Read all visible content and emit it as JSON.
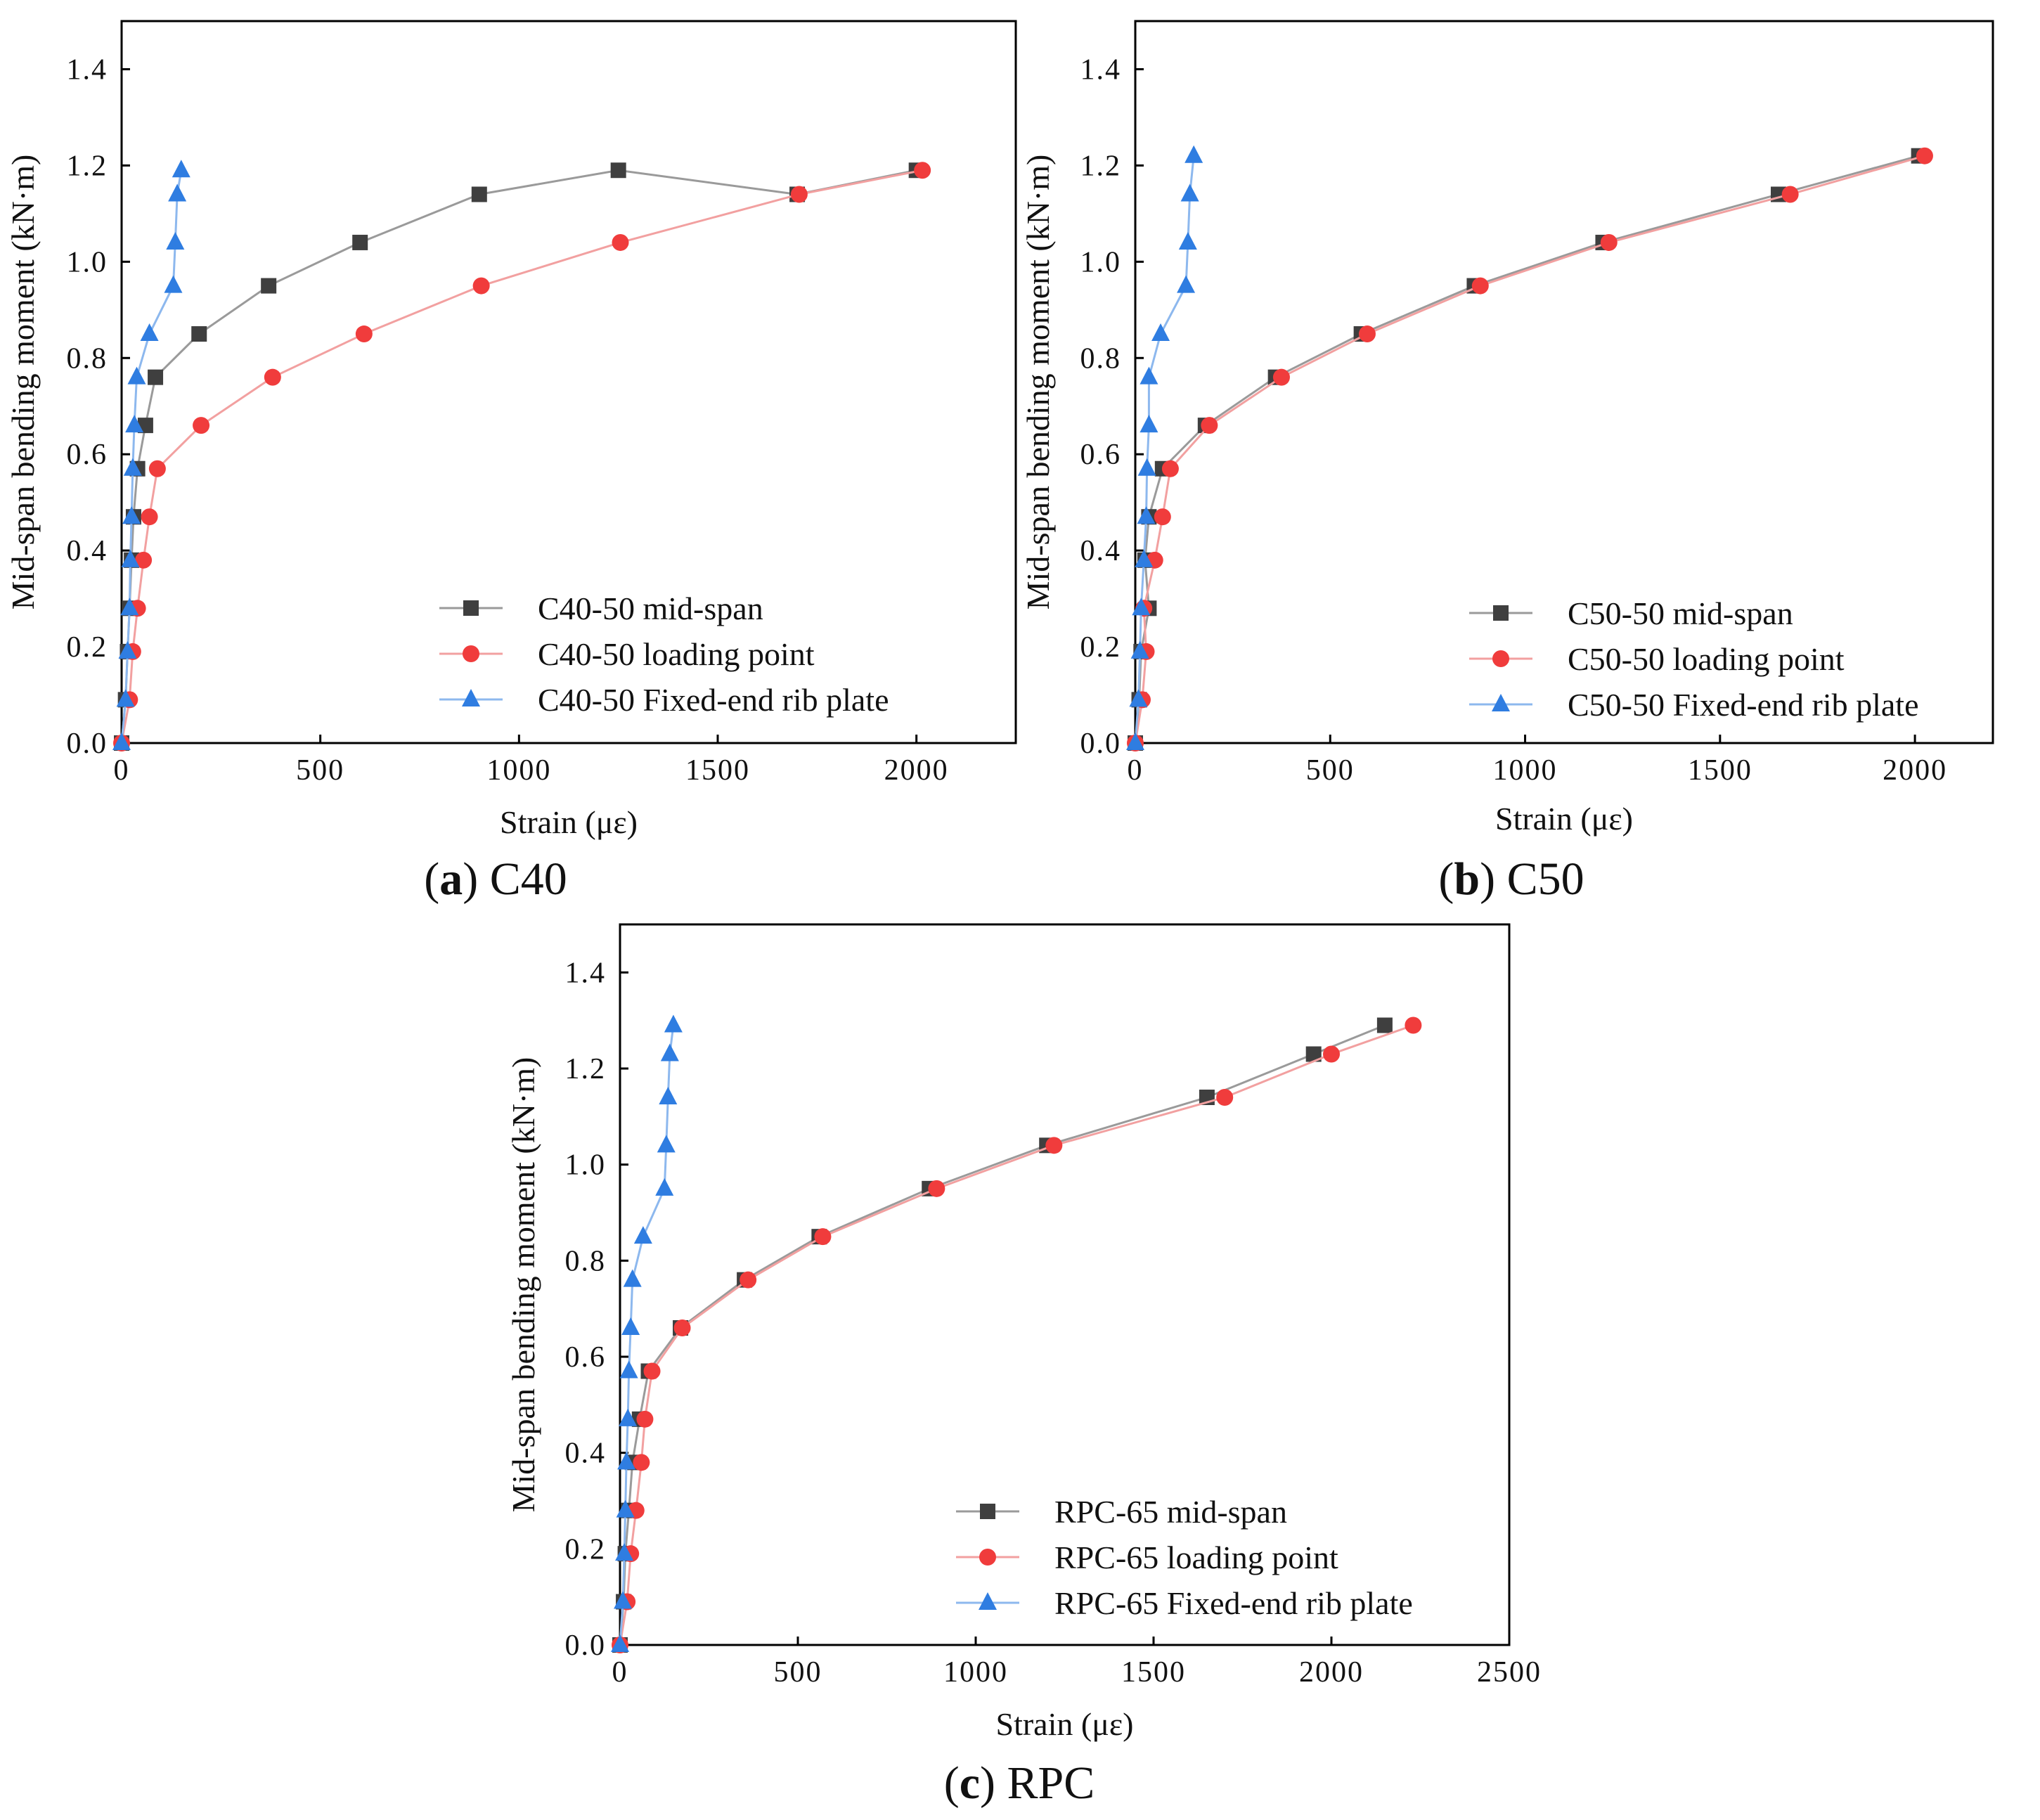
{
  "colors": {
    "midspan": "#3f3f3f",
    "loading": "#f03c3c",
    "ribplate": "#2f7de1",
    "midspan_line": "#9a9a9a",
    "loading_line": "#f2a0a0",
    "ribplate_line": "#8db8ee",
    "axes": "#000000"
  },
  "chart_data": [
    {
      "type": "line",
      "panel": "a",
      "caption_letter": "a",
      "caption_label": "C40",
      "xlabel": "Strain (με)",
      "ylabel": "Mid-span bending moment (kN·m)",
      "xlim": [
        0,
        2250
      ],
      "ylim": [
        0,
        1.5
      ],
      "xticks": [
        0,
        500,
        1000,
        1500,
        2000
      ],
      "xtick_labels": [
        "0",
        "500",
        "1000",
        "1500",
        "2000"
      ],
      "yticks": [
        0,
        0.2,
        0.4,
        0.6,
        0.8,
        1.0,
        1.2,
        1.4
      ],
      "ytick_labels": [
        "0.0",
        "0.2",
        "0.4",
        "0.6",
        "0.8",
        "1.0",
        "1.2",
        "1.4"
      ],
      "legend_position": "bottom-right",
      "grid": false,
      "series": [
        {
          "name": "C40-50  mid-span",
          "marker": "square",
          "color_key": "midspan",
          "x": [
            0,
            10,
            15,
            20,
            25,
            30,
            40,
            60,
            85,
            195,
            370,
            600,
            900,
            1250,
            1700,
            2000
          ],
          "y": [
            0,
            0.09,
            0.19,
            0.28,
            0.38,
            0.47,
            0.57,
            0.66,
            0.76,
            0.85,
            0.95,
            1.04,
            1.14,
            1.19,
            1.14,
            1.19
          ]
        },
        {
          "name": "C40-50  loading point",
          "marker": "circle",
          "color_key": "loading",
          "x": [
            0,
            20,
            28,
            40,
            55,
            70,
            90,
            200,
            380,
            610,
            905,
            1255,
            1705,
            2015
          ],
          "y": [
            0,
            0.09,
            0.19,
            0.28,
            0.38,
            0.47,
            0.57,
            0.66,
            0.76,
            0.85,
            0.95,
            1.04,
            1.14,
            1.19
          ]
        },
        {
          "name": "C40-50 Fixed-end rib plate",
          "marker": "triangle",
          "color_key": "ribplate",
          "x": [
            0,
            10,
            15,
            20,
            22,
            25,
            28,
            32,
            38,
            70,
            130,
            135,
            140,
            150
          ],
          "y": [
            0,
            0.09,
            0.19,
            0.28,
            0.38,
            0.47,
            0.57,
            0.66,
            0.76,
            0.85,
            0.95,
            1.04,
            1.14,
            1.19
          ]
        }
      ]
    },
    {
      "type": "line",
      "panel": "b",
      "caption_letter": "b",
      "caption_label": "C50",
      "xlabel": "Strain (με)",
      "ylabel": "Mid-span bending moment (kN·m)",
      "xlim": [
        0,
        2200
      ],
      "ylim": [
        0,
        1.5
      ],
      "xticks": [
        0,
        500,
        1000,
        1500,
        2000
      ],
      "xtick_labels": [
        "0",
        "500",
        "1000",
        "1500",
        "2000"
      ],
      "yticks": [
        0,
        0.2,
        0.4,
        0.6,
        0.8,
        1.0,
        1.2,
        1.4
      ],
      "ytick_labels": [
        "0.0",
        "0.2",
        "0.4",
        "0.6",
        "0.8",
        "1.0",
        "1.2",
        "1.4"
      ],
      "legend_position": "bottom-right",
      "grid": false,
      "series": [
        {
          "name": "C50-50  mid-span",
          "marker": "square",
          "color_key": "midspan",
          "x": [
            0,
            10,
            15,
            35,
            25,
            35,
            70,
            180,
            360,
            580,
            870,
            1200,
            1650,
            2010
          ],
          "y": [
            0,
            0.09,
            0.19,
            0.28,
            0.38,
            0.47,
            0.57,
            0.66,
            0.76,
            0.85,
            0.95,
            1.04,
            1.14,
            1.22
          ]
        },
        {
          "name": "C50-50  loading point",
          "marker": "circle",
          "color_key": "loading",
          "x": [
            0,
            18,
            28,
            22,
            50,
            70,
            90,
            190,
            375,
            595,
            885,
            1215,
            1680,
            2025
          ],
          "y": [
            0,
            0.09,
            0.19,
            0.28,
            0.38,
            0.47,
            0.57,
            0.66,
            0.76,
            0.85,
            0.95,
            1.04,
            1.14,
            1.22
          ]
        },
        {
          "name": "C50-50  Fixed-end rib plate",
          "marker": "triangle",
          "color_key": "ribplate",
          "x": [
            0,
            8,
            12,
            15,
            22,
            28,
            30,
            35,
            35,
            65,
            130,
            135,
            140,
            150
          ],
          "y": [
            0,
            0.09,
            0.19,
            0.28,
            0.38,
            0.47,
            0.57,
            0.66,
            0.76,
            0.85,
            0.95,
            1.04,
            1.14,
            1.22
          ]
        }
      ]
    },
    {
      "type": "line",
      "panel": "c",
      "caption_letter": "c",
      "caption_label": "RPC",
      "xlabel": "Strain (με)",
      "ylabel": "Mid-span bending moment (kN·m)",
      "xlim": [
        0,
        2500
      ],
      "ylim": [
        0,
        1.5
      ],
      "xticks": [
        0,
        500,
        1000,
        1500,
        2000,
        2500
      ],
      "xtick_labels": [
        "0",
        "500",
        "1000",
        "1500",
        "2000",
        "2500"
      ],
      "yticks": [
        0,
        0.2,
        0.4,
        0.6,
        0.8,
        1.0,
        1.2,
        1.4
      ],
      "ytick_labels": [
        "0.0",
        "0.2",
        "0.4",
        "0.6",
        "0.8",
        "1.0",
        "1.2",
        "1.4"
      ],
      "legend_position": "bottom-right",
      "grid": false,
      "series": [
        {
          "name": "RPC-65  mid-span",
          "marker": "square",
          "color_key": "midspan",
          "x": [
            0,
            10,
            15,
            25,
            35,
            55,
            80,
            170,
            350,
            560,
            870,
            1200,
            1650,
            1950,
            2150
          ],
          "y": [
            0,
            0.09,
            0.19,
            0.28,
            0.38,
            0.47,
            0.57,
            0.66,
            0.76,
            0.85,
            0.95,
            1.04,
            1.14,
            1.23,
            1.29
          ]
        },
        {
          "name": "RPC-65  loading point",
          "marker": "circle",
          "color_key": "loading",
          "x": [
            0,
            20,
            30,
            45,
            60,
            70,
            90,
            175,
            360,
            570,
            890,
            1220,
            1700,
            2000,
            2230
          ],
          "y": [
            0,
            0.09,
            0.19,
            0.28,
            0.38,
            0.47,
            0.57,
            0.66,
            0.76,
            0.85,
            0.95,
            1.04,
            1.14,
            1.23,
            1.29
          ]
        },
        {
          "name": "RPC-65 Fixed-end rib plate",
          "marker": "triangle",
          "color_key": "ribplate",
          "x": [
            0,
            8,
            12,
            15,
            18,
            22,
            25,
            30,
            35,
            65,
            125,
            130,
            135,
            140,
            150
          ],
          "y": [
            0,
            0.09,
            0.19,
            0.28,
            0.38,
            0.47,
            0.57,
            0.66,
            0.76,
            0.85,
            0.95,
            1.04,
            1.14,
            1.23,
            1.29
          ]
        }
      ]
    }
  ]
}
